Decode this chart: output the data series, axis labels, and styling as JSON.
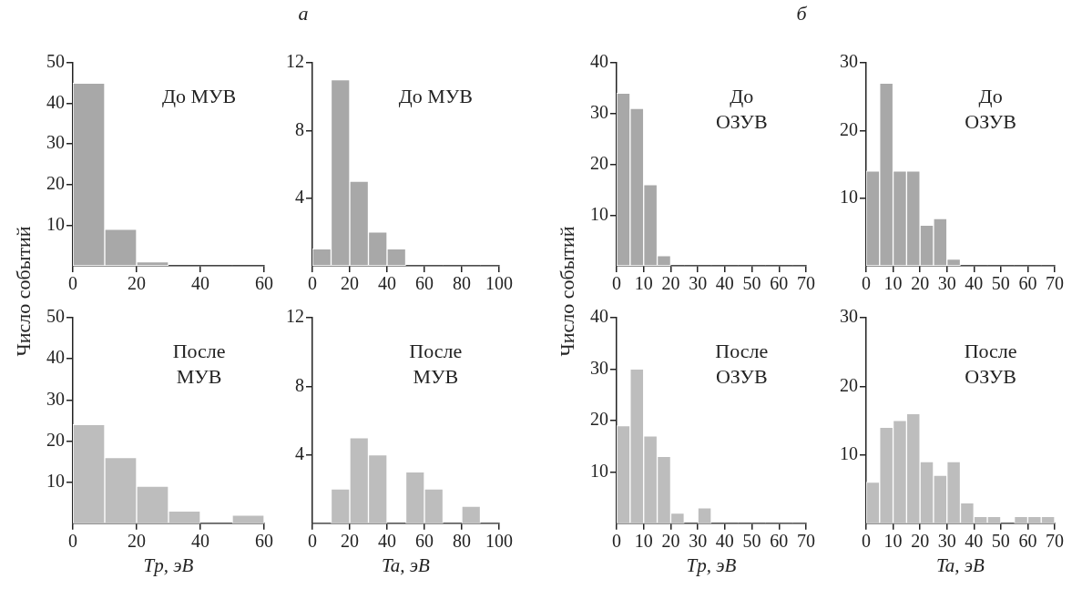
{
  "chart_data": [
    {
      "type": "histogram",
      "ylabel": "Число событий",
      "bins": [
        0,
        10,
        20,
        30,
        40,
        50,
        60
      ],
      "values": [
        45,
        9,
        1,
        0,
        0,
        0
      ],
      "color": "#a8a8a8",
      "xlim": [
        0,
        60
      ],
      "xticks": [
        0,
        20,
        40,
        60
      ],
      "ylim": [
        0,
        50
      ],
      "yticks": [
        10,
        20,
        30,
        40,
        50
      ],
      "annotations": [
        "До МУВ"
      ]
    },
    {
      "type": "histogram",
      "title": "а",
      "bins": [
        0,
        10,
        20,
        30,
        40,
        50,
        60,
        70,
        80,
        90,
        100
      ],
      "values": [
        1,
        11,
        5,
        2,
        1,
        0,
        0,
        0,
        0,
        0
      ],
      "color": "#a8a8a8",
      "xlim": [
        0,
        100
      ],
      "xticks": [
        0,
        20,
        40,
        60,
        80,
        100
      ],
      "ylim": [
        0,
        12
      ],
      "yticks": [
        4,
        8,
        12
      ],
      "annotations": [
        "До МУВ"
      ]
    },
    {
      "type": "histogram",
      "title": "б",
      "ylabel": "Число событий",
      "bins": [
        0,
        5,
        10,
        15,
        20,
        25,
        30,
        35,
        40,
        45,
        50,
        55,
        60,
        65,
        70
      ],
      "values": [
        34,
        31,
        16,
        2,
        0,
        0,
        0,
        0,
        0,
        0,
        0,
        0,
        0,
        0
      ],
      "color": "#a8a8a8",
      "xlim": [
        0,
        70
      ],
      "xticks": [
        0,
        10,
        20,
        30,
        40,
        50,
        60,
        70
      ],
      "ylim": [
        0,
        40
      ],
      "yticks": [
        10,
        20,
        30,
        40
      ],
      "annotations": [
        "До\nОЗУВ"
      ]
    },
    {
      "type": "histogram",
      "bins": [
        0,
        5,
        10,
        15,
        20,
        25,
        30,
        35,
        40,
        45,
        50,
        55,
        60,
        65,
        70
      ],
      "values": [
        14,
        27,
        14,
        14,
        6,
        7,
        1,
        0,
        0,
        0,
        0,
        0,
        0,
        0
      ],
      "color": "#a8a8a8",
      "xlim": [
        0,
        70
      ],
      "xticks": [
        0,
        10,
        20,
        30,
        40,
        50,
        60,
        70
      ],
      "ylim": [
        0,
        30
      ],
      "yticks": [
        10,
        20,
        30
      ],
      "annotations": [
        "До\nОЗУВ"
      ]
    },
    {
      "type": "histogram",
      "xlabel": "Tp, эВ",
      "bins": [
        0,
        10,
        20,
        30,
        40,
        50,
        60
      ],
      "values": [
        24,
        16,
        9,
        3,
        0,
        2
      ],
      "color": "#bdbdbd",
      "xlim": [
        0,
        60
      ],
      "xticks": [
        0,
        20,
        40,
        60
      ],
      "ylim": [
        0,
        50
      ],
      "yticks": [
        10,
        20,
        30,
        40,
        50
      ],
      "annotations": [
        "После\nМУВ"
      ]
    },
    {
      "type": "histogram",
      "xlabel": "Ta, эВ",
      "bins": [
        0,
        10,
        20,
        30,
        40,
        50,
        60,
        70,
        80,
        90,
        100
      ],
      "values": [
        0,
        2,
        5,
        4,
        0,
        3,
        2,
        0,
        1,
        0
      ],
      "color": "#bdbdbd",
      "xlim": [
        0,
        100
      ],
      "xticks": [
        0,
        20,
        40,
        60,
        80,
        100
      ],
      "ylim": [
        0,
        12
      ],
      "yticks": [
        4,
        8,
        12
      ],
      "annotations": [
        "После\nМУВ"
      ]
    },
    {
      "type": "histogram",
      "xlabel": "Tp, эВ",
      "bins": [
        0,
        5,
        10,
        15,
        20,
        25,
        30,
        35,
        40,
        45,
        50,
        55,
        60,
        65,
        70
      ],
      "values": [
        19,
        30,
        17,
        13,
        2,
        0,
        3,
        0,
        0,
        0,
        0,
        0,
        0,
        0
      ],
      "color": "#bdbdbd",
      "xlim": [
        0,
        70
      ],
      "xticks": [
        0,
        10,
        20,
        30,
        40,
        50,
        60,
        70
      ],
      "ylim": [
        0,
        40
      ],
      "yticks": [
        10,
        20,
        30,
        40
      ],
      "annotations": [
        "После\nОЗУВ"
      ]
    },
    {
      "type": "histogram",
      "xlabel": "Ta, эВ",
      "bins": [
        0,
        5,
        10,
        15,
        20,
        25,
        30,
        35,
        40,
        45,
        50,
        55,
        60,
        65,
        70
      ],
      "values": [
        6,
        14,
        15,
        16,
        9,
        7,
        9,
        3,
        1,
        1,
        0,
        1,
        1,
        1
      ],
      "color": "#bdbdbd",
      "xlim": [
        0,
        70
      ],
      "xticks": [
        0,
        10,
        20,
        30,
        40,
        50,
        60,
        70
      ],
      "ylim": [
        0,
        30
      ],
      "yticks": [
        10,
        20,
        30
      ],
      "annotations": [
        "После\nОЗУВ"
      ]
    }
  ]
}
